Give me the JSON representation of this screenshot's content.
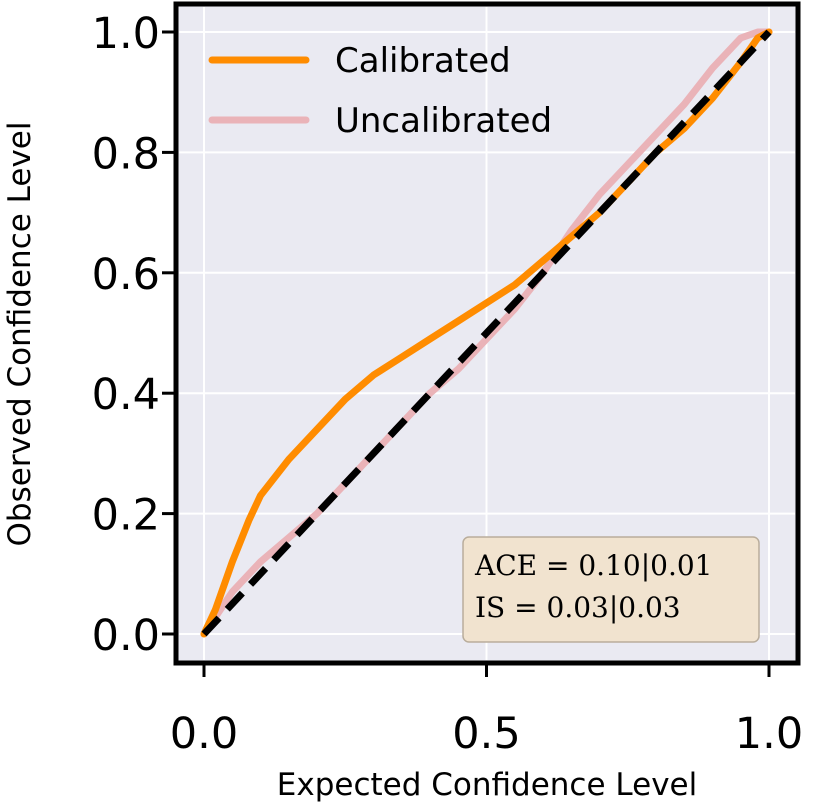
{
  "chart_data": {
    "type": "line",
    "title": "",
    "xlabel": "Expected Confidence Level",
    "ylabel": "Observed Confidence Level",
    "xlim": [
      -0.05,
      1.05
    ],
    "ylim": [
      -0.05,
      1.05
    ],
    "x_ticks": [
      0.0,
      0.5,
      1.0
    ],
    "x_tick_labels": [
      "0.0",
      "0.5",
      "1.0"
    ],
    "y_ticks": [
      0.0,
      0.2,
      0.4,
      0.6,
      0.8,
      1.0
    ],
    "y_tick_labels": [
      "0.0",
      "0.2",
      "0.4",
      "0.6",
      "0.8",
      "1.0"
    ],
    "grid": true,
    "legend_position": "top-left",
    "series": [
      {
        "name": "Calibrated",
        "color": "#ff8c00",
        "x": [
          0.0,
          0.02,
          0.05,
          0.08,
          0.1,
          0.15,
          0.2,
          0.25,
          0.3,
          0.35,
          0.4,
          0.45,
          0.5,
          0.55,
          0.6,
          0.65,
          0.7,
          0.75,
          0.8,
          0.85,
          0.9,
          0.95,
          0.98,
          1.0
        ],
        "y": [
          0.0,
          0.04,
          0.12,
          0.19,
          0.23,
          0.29,
          0.34,
          0.39,
          0.43,
          0.46,
          0.49,
          0.52,
          0.55,
          0.58,
          0.62,
          0.66,
          0.7,
          0.75,
          0.8,
          0.84,
          0.89,
          0.95,
          0.99,
          1.0
        ]
      },
      {
        "name": "Uncalibrated",
        "color": "#eab3b8",
        "x": [
          0.0,
          0.05,
          0.1,
          0.15,
          0.2,
          0.25,
          0.3,
          0.35,
          0.4,
          0.45,
          0.5,
          0.55,
          0.6,
          0.65,
          0.7,
          0.75,
          0.8,
          0.85,
          0.9,
          0.95,
          0.98,
          1.0
        ],
        "y": [
          0.0,
          0.07,
          0.12,
          0.16,
          0.2,
          0.25,
          0.3,
          0.35,
          0.4,
          0.44,
          0.49,
          0.54,
          0.6,
          0.67,
          0.73,
          0.78,
          0.83,
          0.88,
          0.94,
          0.99,
          1.0,
          1.0
        ]
      },
      {
        "name": "ideal",
        "color": "#000000",
        "style": "dashed",
        "x": [
          0.0,
          1.0
        ],
        "y": [
          0.0,
          1.0
        ]
      }
    ],
    "annotation": {
      "line1": "ACE = 0.10|0.01",
      "line2": "IS = 0.03|0.03",
      "position": "bottom-right"
    }
  }
}
